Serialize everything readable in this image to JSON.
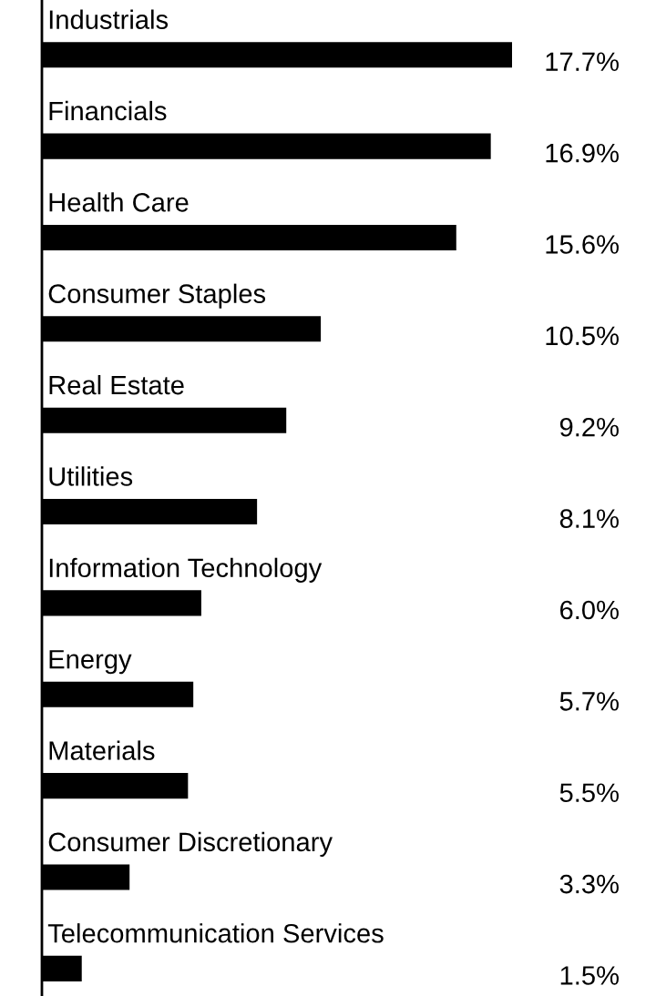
{
  "chart_data": {
    "type": "bar",
    "orientation": "horizontal",
    "data_labels": true,
    "categories": [
      "Industrials",
      "Financials",
      "Health Care",
      "Consumer Staples",
      "Real Estate",
      "Utilities",
      "Information Technology",
      "Energy",
      "Materials",
      "Consumer Discretionary",
      "Telecommunication Services"
    ],
    "values": [
      17.7,
      16.9,
      15.6,
      10.5,
      9.2,
      8.1,
      6.0,
      5.7,
      5.5,
      3.3,
      1.5
    ],
    "color": "#000000",
    "value_labels": [
      "17.7%",
      "16.9%",
      "15.6%",
      "10.5%",
      "9.2%",
      "8.1%",
      "6.0%",
      "5.7%",
      "5.5%",
      "3.3%",
      "1.5%"
    ]
  }
}
